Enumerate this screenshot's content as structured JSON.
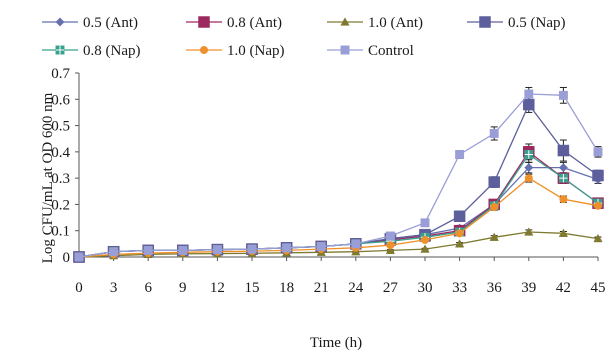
{
  "chart_data": {
    "type": "line",
    "title": "",
    "xlabel": "Time (h)",
    "ylabel": "Log CFU/mL at OD 600 nm",
    "x": [
      0,
      3,
      6,
      9,
      12,
      15,
      18,
      21,
      24,
      27,
      30,
      33,
      36,
      39,
      42,
      45
    ],
    "xticks": [
      "0",
      "3",
      "6",
      "9",
      "12",
      "15",
      "18",
      "21",
      "24",
      "27",
      "30",
      "33",
      "36",
      "39",
      "42",
      "45"
    ],
    "xlim": [
      0,
      45
    ],
    "ylim": [
      0,
      0.7
    ],
    "yticks": [
      "0",
      "0.1",
      "0.2",
      "0.3",
      "0.4",
      "0.5",
      "0.6",
      "0.7"
    ],
    "grid": false,
    "legend_position": "top",
    "error_bars": true,
    "series": [
      {
        "name": "0.5 (Ant)",
        "color": "#6670b0",
        "marker": "diamond",
        "values": [
          0.0,
          0.02,
          0.025,
          0.025,
          0.028,
          0.03,
          0.035,
          0.04,
          0.05,
          0.07,
          0.085,
          0.11,
          0.2,
          0.34,
          0.34,
          0.295
        ],
        "errors": [
          0,
          0.003,
          0.003,
          0.003,
          0.003,
          0.003,
          0.004,
          0.004,
          0.005,
          0.006,
          0.007,
          0.01,
          0.015,
          0.02,
          0.02,
          0.015
        ]
      },
      {
        "name": "0.8 (Ant)",
        "color": "#9c2860",
        "marker": "square",
        "values": [
          0.0,
          0.02,
          0.025,
          0.025,
          0.028,
          0.03,
          0.035,
          0.04,
          0.05,
          0.065,
          0.08,
          0.1,
          0.2,
          0.4,
          0.3,
          0.205
        ],
        "errors": [
          0,
          0.003,
          0.003,
          0.003,
          0.003,
          0.003,
          0.004,
          0.004,
          0.005,
          0.006,
          0.007,
          0.01,
          0.015,
          0.03,
          0.02,
          0.015
        ]
      },
      {
        "name": "1.0 (Ant)",
        "color": "#7f7a30",
        "marker": "triangle",
        "values": [
          0.0,
          0.005,
          0.01,
          0.012,
          0.013,
          0.014,
          0.016,
          0.018,
          0.02,
          0.025,
          0.03,
          0.05,
          0.075,
          0.095,
          0.09,
          0.07
        ],
        "errors": [
          0,
          0.002,
          0.002,
          0.002,
          0.002,
          0.002,
          0.002,
          0.002,
          0.002,
          0.003,
          0.003,
          0.005,
          0.006,
          0.008,
          0.007,
          0.006
        ]
      },
      {
        "name": "0.5 (Nap)",
        "color": "#5c5f9c",
        "marker": "square",
        "values": [
          0.0,
          0.02,
          0.025,
          0.025,
          0.028,
          0.03,
          0.035,
          0.04,
          0.05,
          0.07,
          0.085,
          0.155,
          0.285,
          0.58,
          0.405,
          0.31
        ],
        "errors": [
          0,
          0.003,
          0.003,
          0.003,
          0.003,
          0.003,
          0.004,
          0.004,
          0.005,
          0.006,
          0.007,
          0.01,
          0.02,
          0.03,
          0.04,
          0.02
        ]
      },
      {
        "name": "0.8 (Nap)",
        "color": "#3aa08e",
        "marker": "square-cross",
        "values": [
          0.0,
          0.02,
          0.025,
          0.025,
          0.028,
          0.03,
          0.035,
          0.04,
          0.05,
          0.06,
          0.075,
          0.095,
          0.195,
          0.39,
          0.3,
          0.205
        ],
        "errors": [
          0,
          0.003,
          0.003,
          0.003,
          0.003,
          0.003,
          0.004,
          0.004,
          0.005,
          0.006,
          0.007,
          0.01,
          0.015,
          0.03,
          0.02,
          0.015
        ]
      },
      {
        "name": "1.0 (Nap)",
        "color": "#f0902a",
        "marker": "circle",
        "values": [
          0.0,
          0.01,
          0.015,
          0.018,
          0.02,
          0.022,
          0.025,
          0.03,
          0.035,
          0.045,
          0.065,
          0.09,
          0.19,
          0.3,
          0.22,
          0.195
        ],
        "errors": [
          0,
          0.002,
          0.002,
          0.002,
          0.003,
          0.003,
          0.003,
          0.003,
          0.004,
          0.005,
          0.006,
          0.008,
          0.012,
          0.015,
          0.012,
          0.01
        ]
      },
      {
        "name": "Control",
        "color": "#9a9ed6",
        "marker": "square",
        "values": [
          0.0,
          0.02,
          0.025,
          0.025,
          0.028,
          0.03,
          0.035,
          0.04,
          0.05,
          0.08,
          0.13,
          0.39,
          0.47,
          0.62,
          0.615,
          0.4
        ],
        "errors": [
          0,
          0.003,
          0.003,
          0.003,
          0.003,
          0.003,
          0.004,
          0.004,
          0.005,
          0.007,
          0.008,
          0.015,
          0.025,
          0.025,
          0.03,
          0.02
        ]
      }
    ]
  }
}
